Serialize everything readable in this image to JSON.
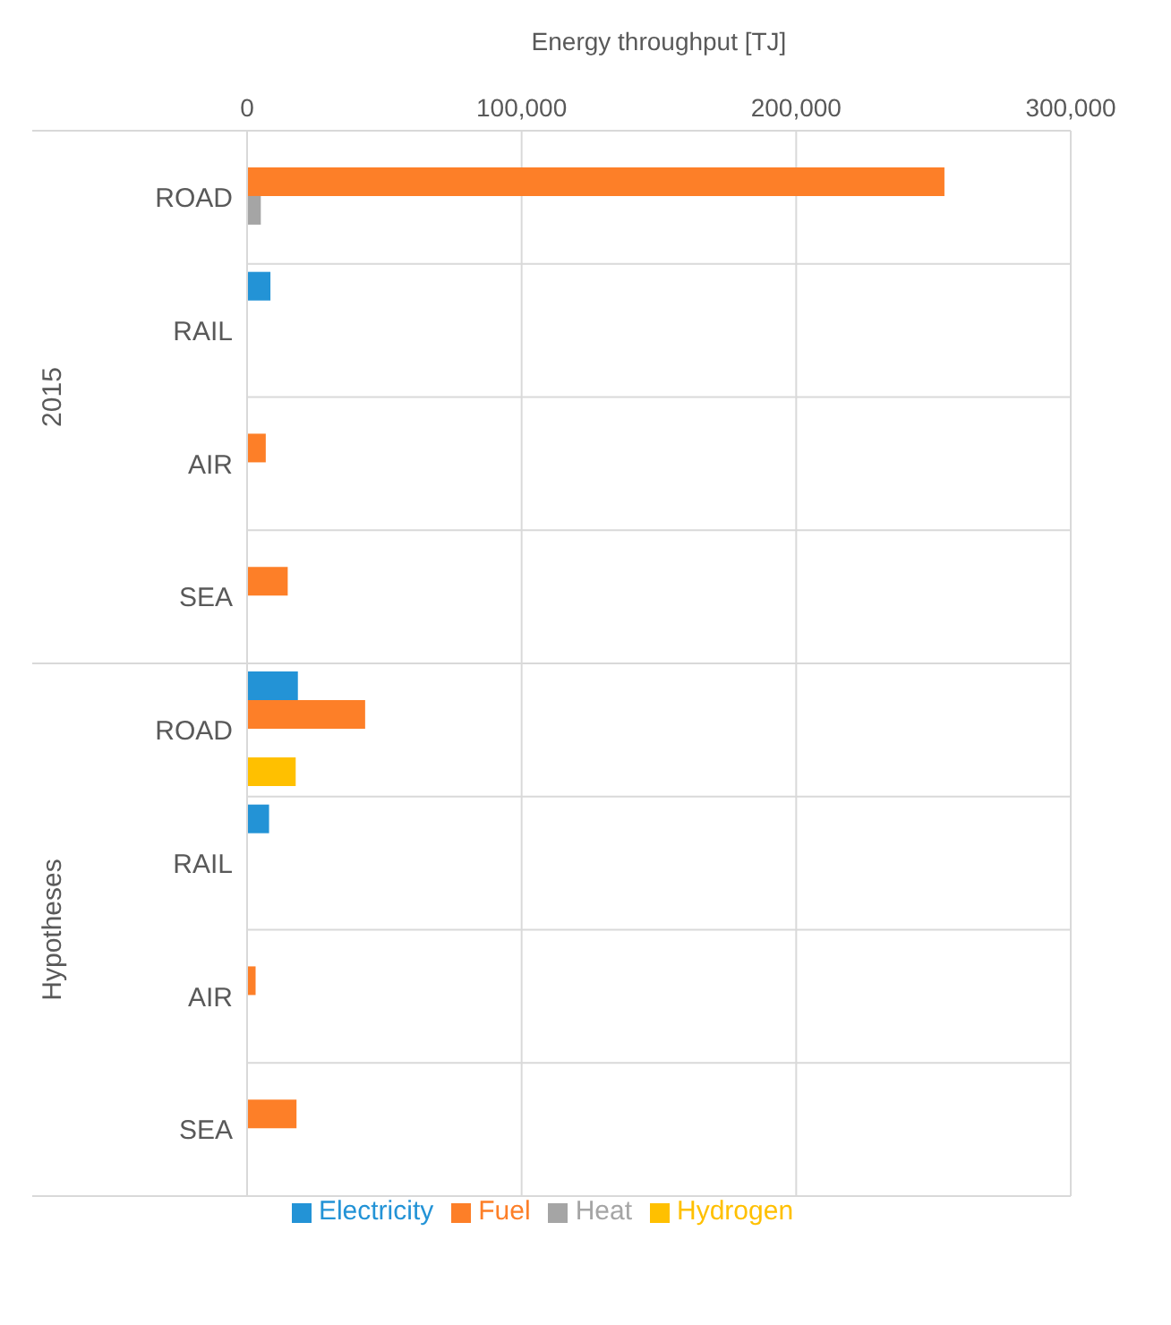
{
  "chart_data": {
    "type": "bar",
    "orientation": "horizontal",
    "xlabel": "Energy throughput [TJ]",
    "categories": [
      "ROAD",
      "RAIL",
      "AIR",
      "SEA",
      "ROAD",
      "RAIL",
      "AIR",
      "SEA"
    ],
    "annotations": [
      "2015",
      "Hypotheses"
    ],
    "series": [
      {
        "name": "Electricity",
        "color": "#2393d6",
        "values": [
          null,
          8500,
          null,
          null,
          18500,
          8000,
          null,
          null
        ]
      },
      {
        "name": "Fuel",
        "color": "#fd7f28",
        "values": [
          254000,
          null,
          6800,
          14800,
          43000,
          null,
          3100,
          18000
        ]
      },
      {
        "name": "Heat",
        "color": "#a5a5a5",
        "values": [
          5000,
          null,
          null,
          null,
          null,
          null,
          null,
          null
        ]
      },
      {
        "name": "Hydrogen",
        "color": "#ffc000",
        "values": [
          null,
          null,
          null,
          null,
          17700,
          null,
          null,
          null
        ]
      }
    ],
    "xlim": [
      0,
      300000
    ],
    "xticks": [
      0,
      {
        "value": 100000,
        "label": "100,000"
      },
      {
        "value": 200000,
        "label": "200,000"
      },
      {
        "value": 300000,
        "label": "300,000"
      }
    ],
    "grid": true,
    "legend": "bottom"
  }
}
